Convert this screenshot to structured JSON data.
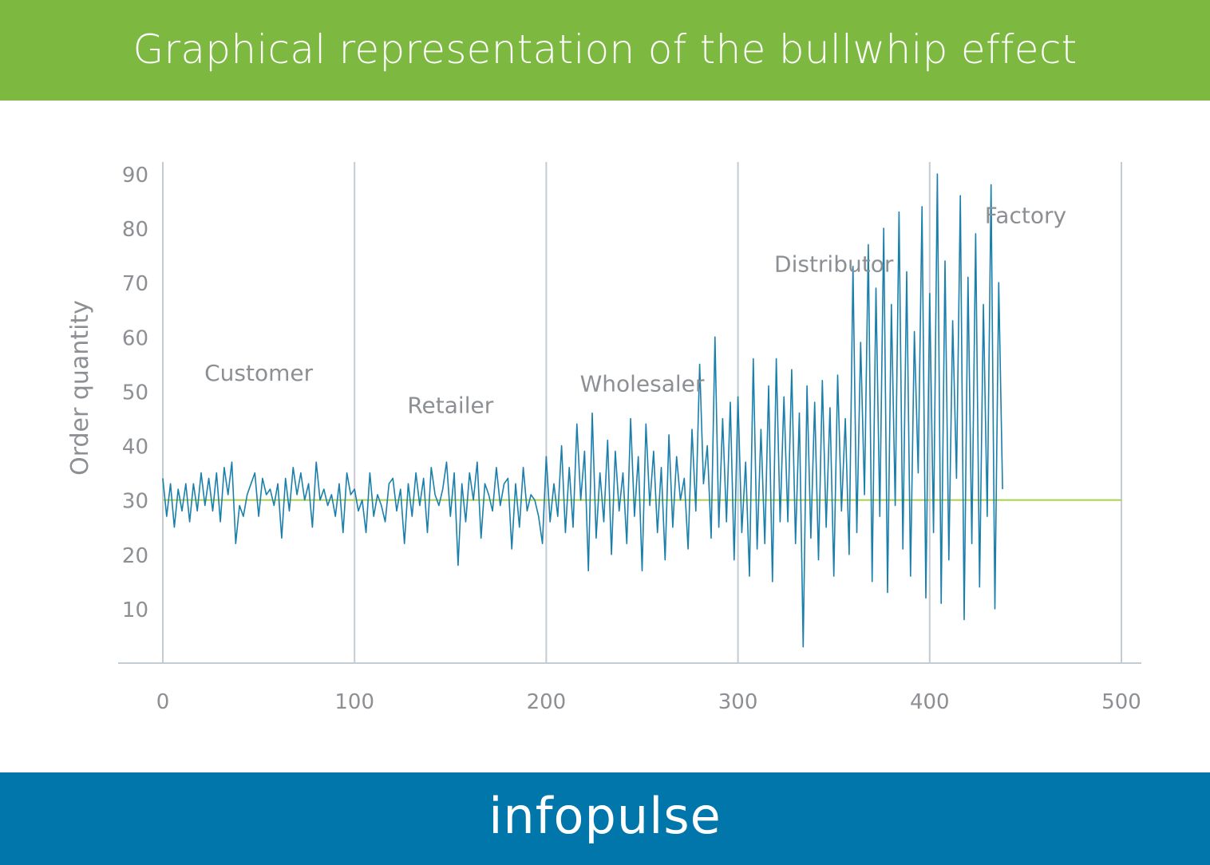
{
  "header": {
    "title": "Graphical representation of the bullwhip effect",
    "bg_color": "#7db940"
  },
  "footer": {
    "brand": "infopulse",
    "bg_color": "#0076ab"
  },
  "colors": {
    "series": "#1a7fab",
    "baseline": "#a8d04a",
    "dividers": "#c4ccd3",
    "text": "#8c8f93"
  },
  "chart_data": {
    "type": "line",
    "title": "",
    "xlabel": "",
    "ylabel": "Order quantity",
    "xlim": [
      0,
      500
    ],
    "ylim": [
      0,
      90
    ],
    "x_ticks": [
      0,
      100,
      200,
      300,
      400,
      500
    ],
    "y_ticks": [
      10,
      20,
      30,
      40,
      50,
      60,
      70,
      80,
      90
    ],
    "grid": "vertical dividers at 0, 100, 200, 300, 400, 500",
    "reference_line": {
      "y": 30
    },
    "stages": [
      {
        "label": "Customer",
        "x_range": [
          0,
          100
        ],
        "amplitude": 8
      },
      {
        "label": "Retailer",
        "x_range": [
          100,
          200
        ],
        "amplitude": 12
      },
      {
        "label": "Wholesaler",
        "x_range": [
          200,
          300
        ],
        "amplitude": 18
      },
      {
        "label": "Distributor",
        "x_range": [
          300,
          400
        ],
        "amplitude": 30
      },
      {
        "label": "Factory",
        "x_range": [
          400,
          500
        ],
        "amplitude": 52
      }
    ],
    "series": [
      {
        "x_start": 0,
        "x_step": 2,
        "values": [
          34,
          27,
          33,
          25,
          32,
          28,
          33,
          26,
          33,
          28,
          35,
          29,
          34,
          28,
          35,
          26,
          36,
          31,
          37,
          22,
          29,
          27,
          31,
          33,
          35,
          27,
          34,
          31,
          32,
          29,
          33,
          23,
          34,
          28,
          36,
          31,
          35,
          30,
          33,
          25,
          37,
          30,
          32,
          29,
          31,
          27,
          33,
          24,
          35,
          31,
          32,
          28,
          30,
          24,
          35,
          27,
          31,
          29,
          26,
          33,
          34,
          28,
          32,
          22,
          33,
          27,
          35,
          29,
          34,
          24,
          36,
          31,
          29,
          32,
          37,
          27,
          35,
          18,
          33,
          26,
          35,
          30,
          37,
          23,
          33,
          31,
          28,
          36,
          29,
          33,
          34,
          21,
          33,
          25,
          36,
          28,
          31,
          30,
          27,
          22,
          38,
          26,
          33,
          27,
          40,
          24,
          36,
          25,
          44,
          30,
          39,
          17,
          46,
          23,
          35,
          26,
          41,
          20,
          39,
          28,
          35,
          22,
          45,
          27,
          38,
          17,
          44,
          29,
          39,
          24,
          36,
          19,
          42,
          25,
          38,
          30,
          34,
          21,
          43,
          28,
          55,
          33,
          40,
          23,
          60,
          25,
          45,
          26,
          48,
          19,
          49,
          24,
          37,
          16,
          56,
          21,
          43,
          22,
          51,
          15,
          56,
          26,
          49,
          26,
          54,
          22,
          46,
          3,
          51,
          23,
          48,
          19,
          52,
          25,
          47,
          16,
          53,
          28,
          45,
          20,
          73,
          24,
          59,
          31,
          77,
          15,
          69,
          27,
          80,
          13,
          66,
          29,
          83,
          21,
          72,
          16,
          61,
          35,
          84,
          12,
          68,
          24,
          91,
          11,
          74,
          19,
          63,
          34,
          86,
          8,
          71,
          22,
          79,
          14,
          66,
          27,
          88,
          10,
          70,
          32
        ]
      }
    ]
  }
}
